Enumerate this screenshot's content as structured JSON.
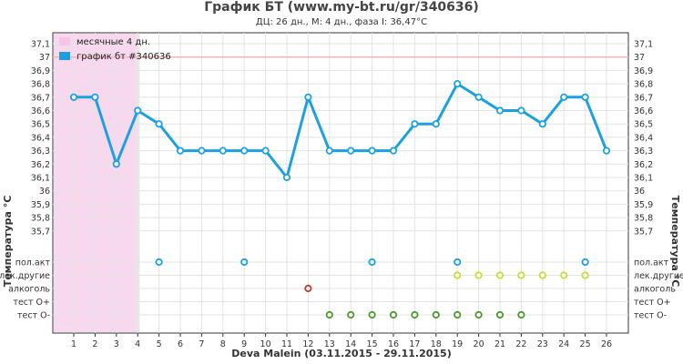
{
  "chart_data": {
    "type": "line",
    "title": "График БТ (www.my-bt.ru/gr/340636)",
    "subtitle": "ДЦ: 26 дн., М: 4 дн., фаза I: 36,47°C",
    "xlabel": "Deva Malein (03.11.2015 - 29.11.2015)",
    "ylabel": "Температура °C",
    "ylabel_right": "Температура °C",
    "categories": [
      "1",
      "2",
      "3",
      "4",
      "5",
      "6",
      "7",
      "8",
      "9",
      "10",
      "11",
      "12",
      "13",
      "14",
      "15",
      "16",
      "17",
      "18",
      "19",
      "20",
      "21",
      "22",
      "23",
      "24",
      "25",
      "26"
    ],
    "ylim": [
      35.7,
      37.1
    ],
    "y_ticks": [
      "37,1",
      "37",
      "36,9",
      "36,8",
      "36,7",
      "36,6",
      "36,5",
      "36,4",
      "36,3",
      "36,2",
      "36,1",
      "36",
      "35,9",
      "35,8",
      "35,7"
    ],
    "y_tick_values": [
      37.1,
      37.0,
      36.9,
      36.8,
      36.7,
      36.6,
      36.5,
      36.4,
      36.3,
      36.2,
      36.1,
      36.0,
      35.9,
      35.8,
      35.7
    ],
    "series": [
      {
        "name": "график бт #340636",
        "color": "#1ba1e2",
        "values": [
          36.7,
          36.7,
          36.2,
          36.6,
          36.5,
          36.3,
          36.3,
          36.3,
          36.3,
          36.3,
          36.1,
          36.7,
          36.3,
          36.3,
          36.3,
          36.3,
          36.5,
          36.5,
          36.8,
          36.7,
          36.6,
          36.6,
          36.5,
          36.7,
          36.7,
          36.3
        ]
      }
    ],
    "reference_line": {
      "value": 37.0,
      "color": "#f4b6b6"
    },
    "menstrual": {
      "label": "месячные 4 дн.",
      "from_day": 1,
      "to_day": 3.5,
      "color": "#f8d8ee"
    },
    "legend": [
      {
        "label": "месячные 4 дн.",
        "color": "#f6c4e6"
      },
      {
        "label": "график бт #340636",
        "color": "#1ba1e2"
      }
    ],
    "legend_position": "top-left",
    "grid": true,
    "markers": [
      {
        "label": "пол.акт",
        "color": "#1ba1e2",
        "days": [
          5,
          9,
          15,
          19,
          25
        ]
      },
      {
        "label": "лек.другие",
        "color": "#c8dc32",
        "days": [
          19,
          20,
          21,
          22,
          23,
          24,
          25
        ]
      },
      {
        "label": "алкоголь",
        "color": "#c0392b",
        "days": [
          12
        ]
      },
      {
        "label": "тест О+",
        "color": "#4a9a2a",
        "days": []
      },
      {
        "label": "тест О-",
        "color": "#4a9a2a",
        "days": [
          13,
          14,
          15,
          16,
          17,
          18,
          19,
          20,
          21,
          22
        ]
      }
    ]
  }
}
